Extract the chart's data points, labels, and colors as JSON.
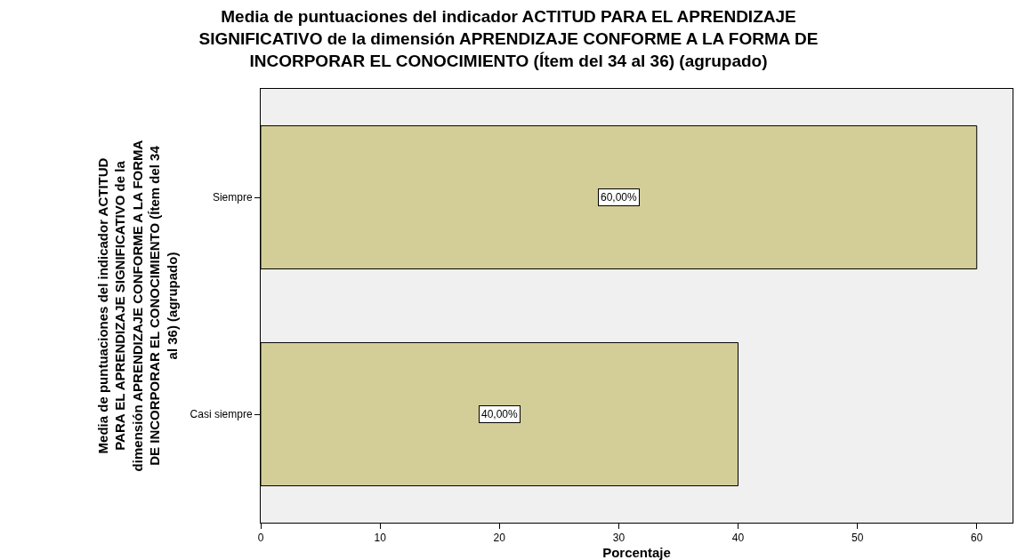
{
  "chart_data": {
    "type": "bar",
    "orientation": "horizontal",
    "title": "Media de puntuaciones del indicador ACTITUD PARA EL APRENDIZAJE SIGNIFICATIVO de la dimensión APRENDIZAJE CONFORME A LA FORMA DE INCORPORAR EL CONOCIMIENTO (Ítem del 34 al 36) (agrupado)",
    "xlabel": "Porcentaje",
    "ylabel": "Media de puntuaciones del indicador ACTITUD PARA EL APRENDIZAJE SIGNIFICATIVO de la dimensión APRENDIZAJE CONFORME A LA FORMA DE INCORPORAR EL CONOCIMIENTO (Ítem del 34 al 36) (agrupado)",
    "categories": [
      "Siempre",
      "Casi siempre"
    ],
    "values": [
      60,
      40
    ],
    "value_labels": [
      "60,00%",
      "40,00%"
    ],
    "color": "#d3ce97",
    "xlim": [
      0,
      63
    ],
    "xticks": [
      0,
      10,
      20,
      30,
      40,
      50,
      60
    ],
    "grid": false,
    "legend": false
  }
}
